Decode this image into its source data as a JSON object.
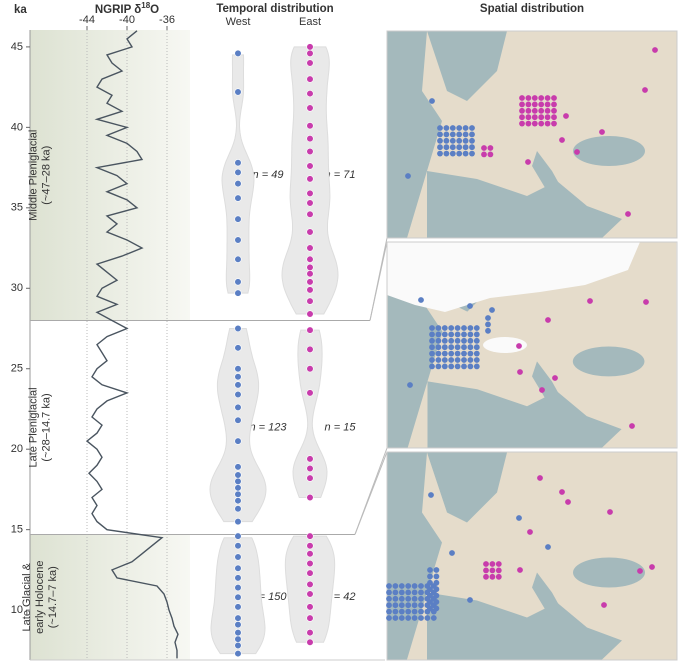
{
  "chart_data": [
    {
      "type": "line",
      "title_parts": [
        "NGRIP δ",
        "18",
        "O"
      ],
      "y_label": "ka",
      "color": "#4a5560",
      "ylim": [
        6.9,
        46.05
      ],
      "yticks": [
        10,
        15,
        20,
        25,
        30,
        35,
        40,
        45
      ],
      "xlim": [
        -49.7,
        -33.7
      ],
      "xticks": [
        -44,
        -40,
        -36
      ],
      "x": [
        7,
        7.5,
        8,
        8.5,
        9,
        9.5,
        10,
        10.5,
        11,
        11.5,
        12,
        12.5,
        13,
        13.5,
        14,
        14.5,
        15,
        15.5,
        16,
        16.5,
        17,
        17.5,
        18,
        18.5,
        19,
        19.5,
        20,
        20.5,
        21,
        21.5,
        22,
        22.5,
        23,
        23.5,
        24,
        24.5,
        25,
        25.5,
        26,
        26.5,
        27,
        27.5,
        28,
        28.5,
        29,
        29.5,
        30,
        30.5,
        31,
        31.5,
        32,
        32.5,
        33,
        33.5,
        34,
        34.5,
        35,
        35.5,
        36,
        36.5,
        37,
        37.5,
        38,
        38.5,
        39,
        39.5,
        40,
        40.5,
        41,
        41.5,
        42,
        42.5,
        43,
        43.5,
        44,
        44.5,
        45,
        45.5,
        46
      ],
      "values": [
        -35,
        -35,
        -35.2,
        -34.9,
        -35.3,
        -35.5,
        -35.8,
        -36,
        -36.3,
        -37,
        -41,
        -41.5,
        -39.5,
        -38.5,
        -37.5,
        -36.5,
        -42,
        -43,
        -43.5,
        -43,
        -43.5,
        -42.5,
        -43,
        -43.8,
        -43,
        -42.5,
        -43,
        -44,
        -43,
        -42.5,
        -43.5,
        -43,
        -42,
        -40,
        -42.5,
        -43.5,
        -43,
        -42,
        -42.5,
        -43,
        -42,
        -40,
        -41.5,
        -43,
        -41,
        -43,
        -42.5,
        -41,
        -42,
        -43,
        -40.5,
        -38.5,
        -40,
        -42,
        -41,
        -42,
        -39,
        -40,
        -42,
        -40,
        -41,
        -43,
        -38.5,
        -39,
        -40,
        -42,
        -40,
        -43,
        -40.5,
        -42,
        -41.5,
        -43,
        -42.5,
        -40.5,
        -41.5,
        -42,
        -39.5,
        -40,
        -39
      ]
    },
    {
      "type": "violin",
      "title": "Temporal distribution",
      "ylim": [
        6.9,
        46.05
      ],
      "categories": [
        "West",
        "East"
      ],
      "boundaries": [
        28,
        14.7
      ],
      "periods": [
        {
          "label": [
            "Middle Pleniglacial",
            "(~47–28 ka)"
          ],
          "n_labels": [
            "n = 49",
            "n = 71"
          ]
        },
        {
          "label": [
            "Late Pleniglacial",
            "(~28–14.7 ka)"
          ],
          "n_labels": [
            "n = 123",
            "n = 15"
          ]
        },
        {
          "label": [
            "Late Glacial &",
            "early Holocene",
            "(~14.7–7 ka)"
          ],
          "n_labels": [
            "n = 150",
            "n = 42"
          ]
        }
      ],
      "series": [
        {
          "name": "West",
          "color": "#5b7fc4",
          "values": [
            7.3,
            7.8,
            8.2,
            8.6,
            9.1,
            9.5,
            10.2,
            10.8,
            11.4,
            12.0,
            12.6,
            13.3,
            14.0,
            14.6,
            15.5,
            16.3,
            16.8,
            17.2,
            17.6,
            18.0,
            18.4,
            18.9,
            20.5,
            21.8,
            22.6,
            23.4,
            24.0,
            24.5,
            25.0,
            26.3,
            27.5,
            29.7,
            30.4,
            31.8,
            33.0,
            34.3,
            35.6,
            36.5,
            37.2,
            37.8,
            42.2,
            44.6
          ]
        },
        {
          "name": "East",
          "color": "#c83cac",
          "values": [
            8.0,
            8.6,
            9.5,
            10.2,
            11.0,
            11.6,
            12.3,
            12.9,
            13.5,
            14.0,
            14.6,
            17.0,
            18.2,
            18.8,
            19.4,
            23.5,
            25.0,
            26.2,
            27.4,
            28.4,
            29.2,
            29.9,
            30.4,
            30.9,
            31.3,
            31.8,
            32.5,
            33.5,
            34.6,
            35.3,
            35.9,
            36.8,
            37.6,
            38.5,
            39.3,
            40.1,
            41.2,
            42.1,
            43.0,
            44.0,
            44.6,
            45.0
          ]
        }
      ]
    }
  ],
  "maps": {
    "title": "Spatial distribution"
  }
}
